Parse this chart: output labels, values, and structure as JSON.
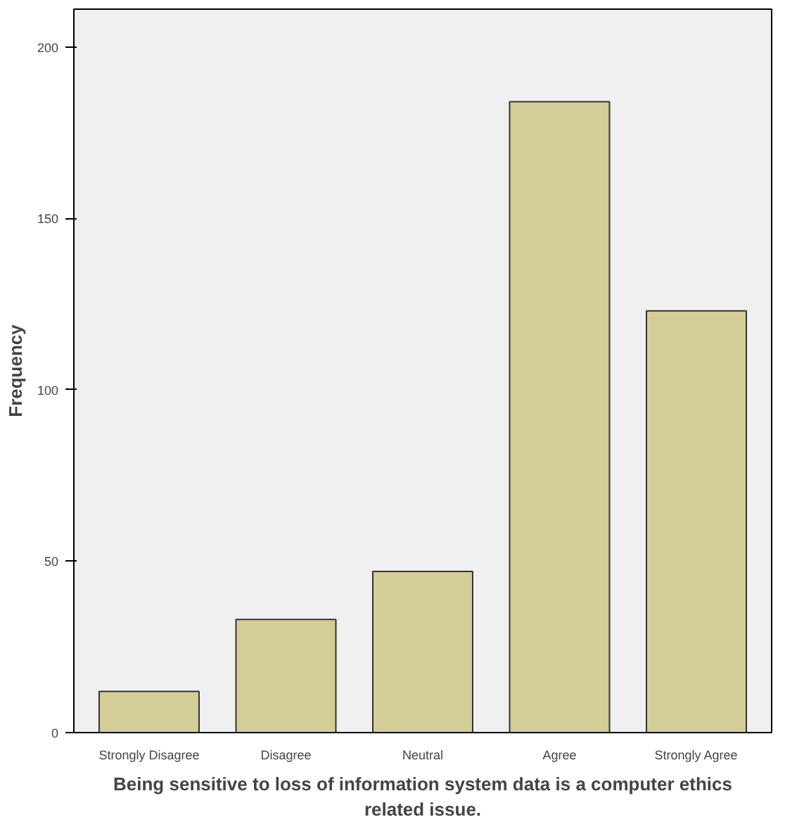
{
  "chart_data": {
    "type": "bar",
    "xlabel": "Being sensitive to loss of information system data is a computer ethics related issue.",
    "ylabel": "Frequency",
    "categories": [
      "Strongly Disagree",
      "Disagree",
      "Neutral",
      "Agree",
      "Strongly Agree"
    ],
    "values": [
      12,
      33,
      47,
      184,
      123
    ],
    "color": "#d3ce98",
    "ylim": [
      0,
      211
    ],
    "yticks": [
      0,
      50,
      100,
      150,
      200
    ],
    "grid": false
  }
}
